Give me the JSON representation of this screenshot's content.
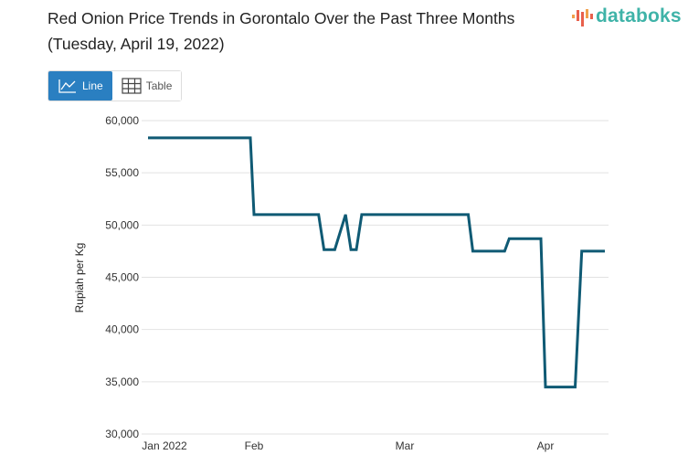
{
  "title": "Red Onion Price Trends in Gorontalo Over the Past Three Months (Tuesday, April 19, 2022)",
  "logo": {
    "text": "databoks"
  },
  "toolbar": {
    "line_label": "Line",
    "table_label": "Table",
    "active": "Line"
  },
  "colors": {
    "line": "#0f5a74",
    "active_button": "#2a7fc1",
    "logo_text": "#3fb3a8",
    "logo_bars": [
      "#f0a04b",
      "#e8604c"
    ]
  },
  "chart_data": {
    "type": "line",
    "title": "Red Onion Price Trends in Gorontalo Over the Past Three Months (Tuesday, April 19, 2022)",
    "xlabel": "",
    "ylabel": "Rupiah per Kg",
    "ylim": [
      30000,
      60000
    ],
    "yticks": [
      "30,000",
      "35,000",
      "40,000",
      "45,000",
      "50,000",
      "55,000",
      "60,000"
    ],
    "xticks": [
      "Jan 2022",
      "Feb",
      "Mar",
      "Apr"
    ],
    "grid": true,
    "legend": "none",
    "series": [
      {
        "x": [
          "2022-01-03",
          "2022-01-31",
          "2022-02-01",
          "2022-02-13",
          "2022-02-14",
          "2022-02-16",
          "2022-02-18",
          "2022-02-19",
          "2022-02-20",
          "2022-02-21",
          "2022-03-15",
          "2022-03-16",
          "2022-03-23",
          "2022-03-24",
          "2022-03-31",
          "2022-04-01",
          "2022-04-10",
          "2022-04-12",
          "2022-04-19"
        ],
        "values": [
          58350,
          58350,
          51000,
          51000,
          47650,
          47650,
          51000,
          47650,
          47650,
          51000,
          51000,
          47500,
          47500,
          48700,
          48700,
          34500,
          34500,
          47500,
          47500
        ]
      }
    ]
  }
}
